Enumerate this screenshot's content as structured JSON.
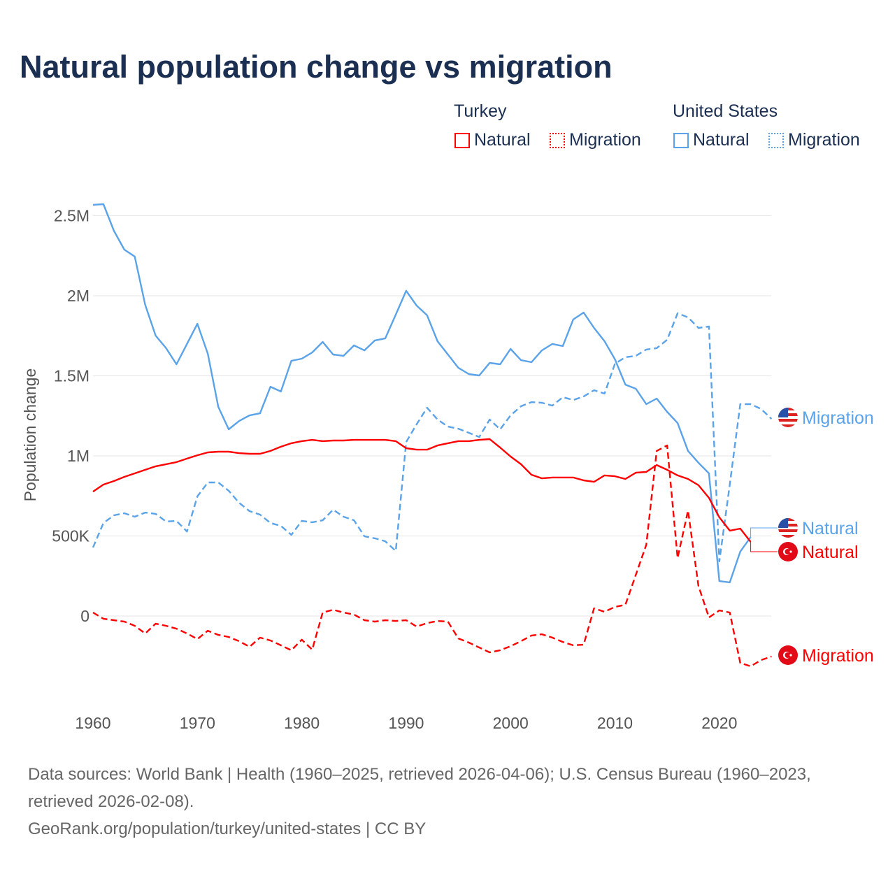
{
  "title": "Natural population change vs migration",
  "legend": {
    "groups": [
      {
        "name": "Turkey",
        "items": [
          {
            "label": "Natural",
            "style": "solid",
            "color": "#ff0000"
          },
          {
            "label": "Migration",
            "style": "dotted",
            "color": "#ff0000"
          }
        ]
      },
      {
        "name": "United States",
        "items": [
          {
            "label": "Natural",
            "style": "solid",
            "color": "#5ba3e8"
          },
          {
            "label": "Migration",
            "style": "dotted",
            "color": "#5ba3e8"
          }
        ]
      }
    ]
  },
  "footer": {
    "sources": "Data sources: World Bank | Health (1960–2025, retrieved 2026-04-06); U.S. Census Bureau (1960–2023, retrieved 2026-02-08).",
    "link": "GeoRank.org/population/turkey/united-states | CC BY"
  },
  "chart_data": {
    "type": "line",
    "title": "Natural population change vs migration",
    "xlabel": "",
    "ylabel": "Population change",
    "xlim": [
      1960,
      2025
    ],
    "ylim": [
      -450000,
      2600000
    ],
    "x_ticks": [
      1960,
      1970,
      1980,
      1990,
      2000,
      2010,
      2020
    ],
    "x_tick_labels": [
      "1960",
      "1970",
      "1980",
      "1990",
      "2000",
      "2010",
      "2020"
    ],
    "y_ticks": [
      0,
      500000,
      1000000,
      1500000,
      2000000,
      2500000
    ],
    "y_tick_labels": [
      "0",
      "500K",
      "1M",
      "1.5M",
      "2M",
      "2.5M"
    ],
    "grid": true,
    "series": [
      {
        "name": "United States Natural",
        "end_label": "Natural",
        "country": "us",
        "color": "#5ba3e8",
        "dashed": false,
        "start": 1960,
        "values": [
          2568,
          2572,
          2406,
          2288,
          2245,
          1943,
          1751,
          1673,
          1572,
          1699,
          1825,
          1638,
          1306,
          1166,
          1218,
          1253,
          1266,
          1432,
          1402,
          1594,
          1607,
          1646,
          1712,
          1633,
          1625,
          1690,
          1659,
          1721,
          1734,
          1882,
          2031,
          1939,
          1878,
          1716,
          1633,
          1550,
          1511,
          1502,
          1581,
          1572,
          1668,
          1598,
          1585,
          1659,
          1699,
          1686,
          1852,
          1895,
          1799,
          1716,
          1603,
          1445,
          1419,
          1323,
          1358,
          1275,
          1205,
          1031,
          957,
          891,
          218,
          210,
          402,
          493
        ],
        "unit": "thousands"
      },
      {
        "name": "United States Migration",
        "end_label": "Migration",
        "country": "us",
        "color": "#5ba3e8",
        "dashed": true,
        "start": 1960,
        "values": [
          428,
          581,
          629,
          642,
          620,
          646,
          638,
          590,
          594,
          528,
          747,
          834,
          834,
          782,
          707,
          655,
          633,
          581,
          563,
          507,
          594,
          585,
          598,
          664,
          620,
          598,
          498,
          485,
          467,
          406,
          1087,
          1197,
          1301,
          1227,
          1183,
          1170,
          1144,
          1118,
          1227,
          1166,
          1253,
          1310,
          1336,
          1332,
          1314,
          1367,
          1349,
          1371,
          1410,
          1389,
          1576,
          1616,
          1625,
          1664,
          1673,
          1725,
          1891,
          1865,
          1799,
          1808,
          341,
          821,
          1323,
          1323,
          1293,
          1231
        ],
        "unit": "thousands"
      },
      {
        "name": "Turkey Natural",
        "end_label": "Natural",
        "country": "tr",
        "color": "#ff0000",
        "dashed": false,
        "start": 1960,
        "values": [
          777,
          821,
          843,
          869,
          891,
          913,
          935,
          948,
          961,
          983,
          1004,
          1022,
          1026,
          1026,
          1017,
          1013,
          1013,
          1031,
          1057,
          1079,
          1092,
          1100,
          1092,
          1096,
          1096,
          1100,
          1100,
          1100,
          1100,
          1092,
          1048,
          1039,
          1039,
          1065,
          1079,
          1092,
          1092,
          1100,
          1105,
          1052,
          996,
          948,
          882,
          860,
          865,
          865,
          865,
          847,
          838,
          878,
          873,
          856,
          895,
          900,
          943,
          913,
          878,
          856,
          817,
          738,
          616,
          533,
          546,
          463
        ],
        "unit": "thousands"
      },
      {
        "name": "Turkey Migration",
        "end_label": "Migration",
        "country": "tr",
        "color": "#ff0000",
        "dashed": true,
        "start": 1960,
        "values": [
          22,
          -17,
          -26,
          -35,
          -61,
          -109,
          -48,
          -61,
          -79,
          -109,
          -144,
          -92,
          -118,
          -131,
          -157,
          -192,
          -135,
          -153,
          -183,
          -214,
          -148,
          -210,
          22,
          39,
          22,
          9,
          -26,
          -35,
          -26,
          -31,
          -26,
          -66,
          -44,
          -31,
          -35,
          -140,
          -166,
          -197,
          -227,
          -214,
          -188,
          -157,
          -122,
          -114,
          -135,
          -162,
          -183,
          -179,
          48,
          26,
          57,
          70,
          258,
          445,
          1031,
          1065,
          362,
          659,
          188,
          -9,
          35,
          22,
          -293,
          -314,
          -275,
          -253
        ],
        "unit": "thousands"
      }
    ]
  }
}
